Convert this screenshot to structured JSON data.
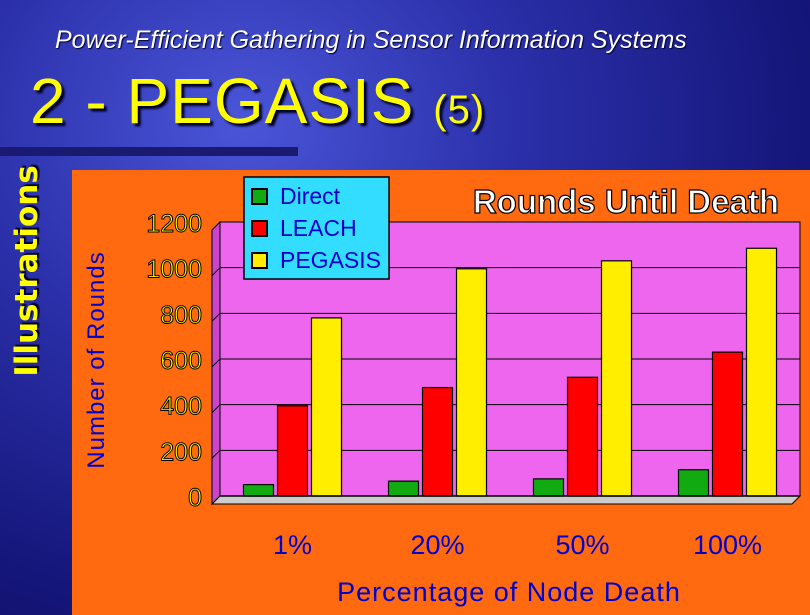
{
  "slide": {
    "subtitle": "Power-Efficient Gathering in Sensor Information Systems",
    "title": "2 - PEGASIS",
    "title_suffix": "(5)",
    "side_label": "Illustrations"
  },
  "colors": {
    "panel": "#ff6a10",
    "plot": "#ee66ee",
    "legend_bg": "#33ddff",
    "direct": "#11aa11",
    "leach": "#ff0000",
    "pegasis": "#ffee00"
  },
  "chart_data": {
    "type": "bar",
    "title": "Rounds Until Death",
    "xlabel": "Percentage of Node Death",
    "ylabel": "Number of Rounds",
    "categories": [
      "1%",
      "20%",
      "50%",
      "100%"
    ],
    "ylim": [
      0,
      1200
    ],
    "yticks": [
      0,
      200,
      400,
      600,
      800,
      1000,
      1200
    ],
    "series": [
      {
        "name": "Direct",
        "color": "#11aa11",
        "values": [
          50,
          65,
          75,
          115
        ]
      },
      {
        "name": "LEACH",
        "color": "#ff0000",
        "values": [
          395,
          475,
          520,
          630
        ]
      },
      {
        "name": "PEGASIS",
        "color": "#ffee00",
        "values": [
          780,
          995,
          1030,
          1085
        ]
      }
    ],
    "legend_position": "top-left",
    "grid": true
  }
}
